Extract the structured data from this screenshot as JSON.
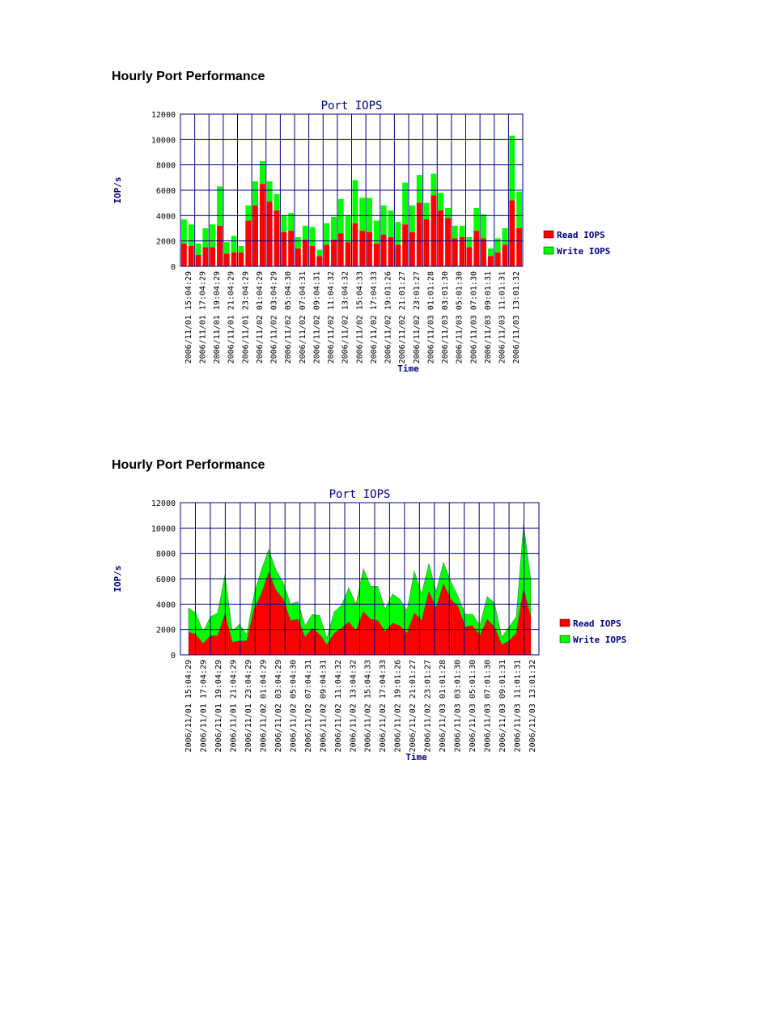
{
  "page": {
    "sections": [
      {
        "heading": "Hourly Port Performance"
      },
      {
        "heading": "Hourly Port Performance"
      }
    ]
  },
  "colors": {
    "read": "#ff0000",
    "write": "#00ff00",
    "grid": "#000080",
    "text": "#000080"
  },
  "chart_data": [
    {
      "type": "bar",
      "stacked": true,
      "title": "Port IOPS",
      "xlabel": "Time",
      "ylabel": "IOP/s",
      "ylim": [
        0,
        12000
      ],
      "yticks": [
        "0",
        "2000",
        "4000",
        "6000",
        "8000",
        "10000",
        "12000"
      ],
      "grid": true,
      "legend_position": "right",
      "x_tick_labels": [
        "2006/11/01 15:04:29",
        "2006/11/01 17:04:29",
        "2006/11/01 19:04:29",
        "2006/11/01 21:04:29",
        "2006/11/01 23:04:29",
        "2006/11/02 01:04:29",
        "2006/11/02 03:04:29",
        "2006/11/02 05:04:30",
        "2006/11/02 07:04:31",
        "2006/11/02 09:04:31",
        "2006/11/02 11:04:32",
        "2006/11/02 13:04:32",
        "2006/11/02 15:04:33",
        "2006/11/02 17:04:33",
        "2006/11/02 19:01:26",
        "2006/11/02 21:01:27",
        "2006/11/02 23:01:27",
        "2006/11/03 01:01:28",
        "2006/11/03 03:01:30",
        "2006/11/03 05:01:30",
        "2006/11/03 07:01:30",
        "2006/11/03 09:01:31",
        "2006/11/03 11:01:31",
        "2006/11/03 13:01:32"
      ],
      "series": [
        {
          "name": "Read IOPS",
          "color": "#ff0000",
          "values": [
            1800,
            1600,
            900,
            1500,
            1500,
            3200,
            1000,
            1100,
            1100,
            3600,
            4800,
            6500,
            5100,
            4400,
            2700,
            2800,
            1400,
            2100,
            1600,
            800,
            1700,
            2100,
            2600,
            1900,
            3400,
            2800,
            2700,
            1800,
            2500,
            2300,
            1700,
            3300,
            2700,
            5000,
            3700,
            5600,
            4400,
            3800,
            2200,
            2300,
            1500,
            2800,
            2200,
            800,
            1100,
            1700,
            5200,
            3000
          ]
        },
        {
          "name": "Write IOPS",
          "color": "#00ff00",
          "values": [
            1900,
            1700,
            900,
            1500,
            1800,
            3100,
            900,
            1300,
            500,
            1200,
            1900,
            1800,
            1600,
            1300,
            1300,
            1400,
            900,
            1100,
            1500,
            500,
            1700,
            1800,
            2700,
            2100,
            3400,
            2600,
            2700,
            1800,
            2300,
            2100,
            1800,
            3300,
            2100,
            2200,
            1300,
            1700,
            1400,
            800,
            1000,
            900,
            800,
            1800,
            1900,
            600,
            1100,
            1300,
            5100,
            2900
          ]
        }
      ]
    },
    {
      "type": "area",
      "stacked": true,
      "title": "Port IOPS",
      "xlabel": "Time",
      "ylabel": "IOP/s",
      "ylim": [
        0,
        12000
      ],
      "yticks": [
        "0",
        "2000",
        "4000",
        "6000",
        "8000",
        "10000",
        "12000"
      ],
      "grid": true,
      "legend_position": "right",
      "x_tick_labels": [
        "2006/11/01 15:04:29",
        "2006/11/01 17:04:29",
        "2006/11/01 19:04:29",
        "2006/11/01 21:04:29",
        "2006/11/01 23:04:29",
        "2006/11/02 01:04:29",
        "2006/11/02 03:04:29",
        "2006/11/02 05:04:30",
        "2006/11/02 07:04:31",
        "2006/11/02 09:04:31",
        "2006/11/02 11:04:32",
        "2006/11/02 13:04:32",
        "2006/11/02 15:04:33",
        "2006/11/02 17:04:33",
        "2006/11/02 19:01:26",
        "2006/11/02 21:01:27",
        "2006/11/02 23:01:27",
        "2006/11/03 01:01:28",
        "2006/11/03 03:01:30",
        "2006/11/03 05:01:30",
        "2006/11/03 07:01:30",
        "2006/11/03 09:01:31",
        "2006/11/03 11:01:31",
        "2006/11/03 13:01:32"
      ],
      "series": [
        {
          "name": "Read IOPS",
          "color": "#ff0000",
          "values": [
            1800,
            1600,
            900,
            1500,
            1500,
            3200,
            1000,
            1100,
            1100,
            3600,
            4800,
            6500,
            5100,
            4400,
            2700,
            2800,
            1400,
            2100,
            1600,
            800,
            1700,
            2100,
            2600,
            1900,
            3400,
            2800,
            2700,
            1800,
            2500,
            2300,
            1700,
            3300,
            2700,
            5000,
            3700,
            5600,
            4400,
            3800,
            2200,
            2300,
            1500,
            2800,
            2200,
            800,
            1100,
            1700,
            5200,
            3000
          ]
        },
        {
          "name": "Write IOPS",
          "color": "#00ff00",
          "values": [
            1900,
            1700,
            900,
            1500,
            1800,
            3100,
            900,
            1300,
            500,
            1200,
            1900,
            1800,
            1600,
            1300,
            1300,
            1400,
            900,
            1100,
            1500,
            500,
            1700,
            1800,
            2700,
            2100,
            3400,
            2600,
            2700,
            1800,
            2300,
            2100,
            1800,
            3300,
            2100,
            2200,
            1300,
            1700,
            1400,
            800,
            1000,
            900,
            800,
            1800,
            1900,
            600,
            1100,
            1300,
            5100,
            2900
          ]
        }
      ]
    }
  ]
}
